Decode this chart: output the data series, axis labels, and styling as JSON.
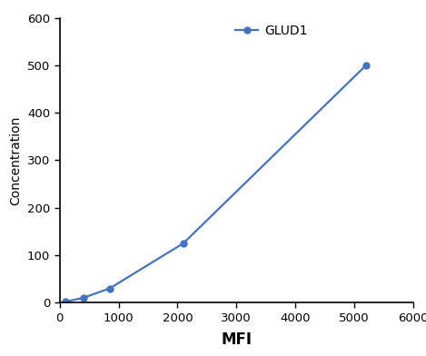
{
  "x": [
    100,
    400,
    850,
    2100,
    5200
  ],
  "y": [
    2,
    10,
    30,
    125,
    500
  ],
  "line_color": "#4472C4",
  "marker": "o",
  "marker_size": 5,
  "linewidth": 1.6,
  "xlabel": "MFI",
  "ylabel": "Concentration",
  "xlim": [
    0,
    6000
  ],
  "ylim": [
    0,
    600
  ],
  "xticks": [
    0,
    1000,
    2000,
    3000,
    4000,
    5000,
    6000
  ],
  "yticks": [
    0,
    100,
    200,
    300,
    400,
    500,
    600
  ],
  "legend_label": "GLUD1",
  "xlabel_fontsize": 12,
  "ylabel_fontsize": 10,
  "tick_fontsize": 9.5,
  "legend_fontsize": 10,
  "background_color": "#ffffff",
  "spine_color": "#000000"
}
